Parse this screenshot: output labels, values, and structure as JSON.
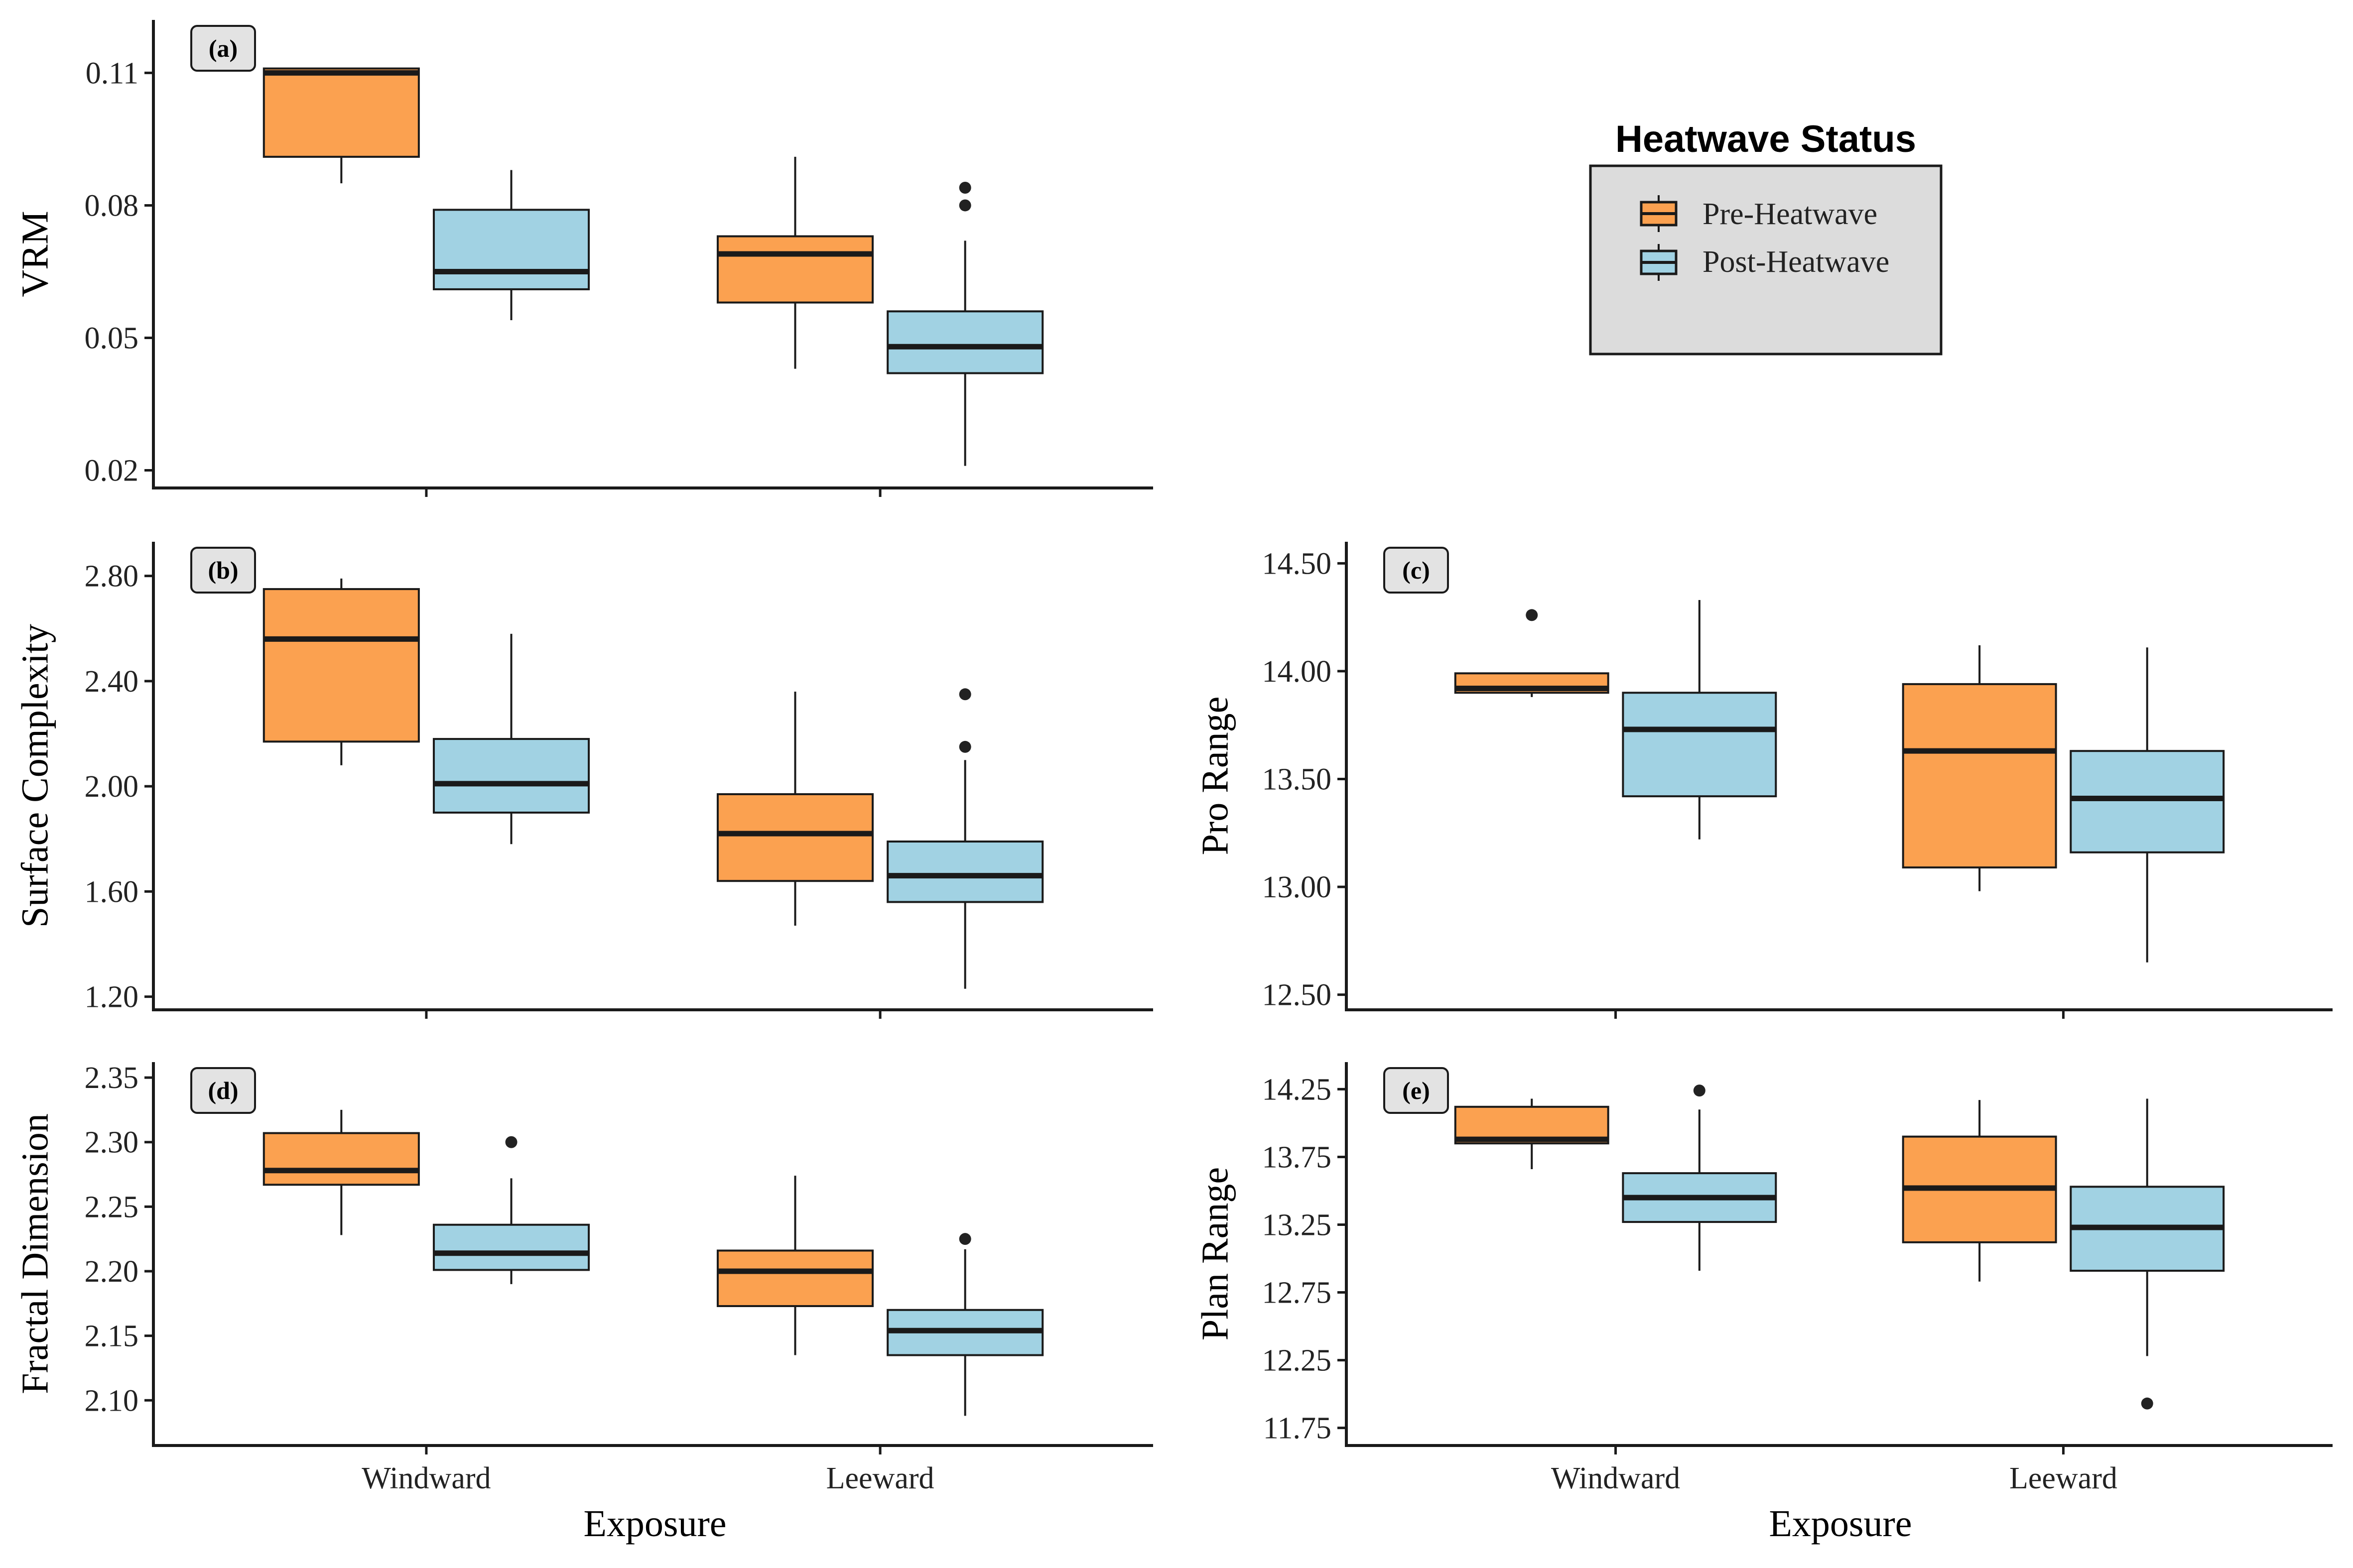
{
  "legend": {
    "title": "Heatwave Status",
    "items": [
      {
        "label": "Pre-Heatwave",
        "color": "#FBA150"
      },
      {
        "label": "Post-Heatwave",
        "color": "#A1D2E3"
      }
    ]
  },
  "colors": {
    "pre": "#FBA150",
    "post": "#A1D2E3",
    "line": "#1a1a1a",
    "tag_bg": "#E3E3E3",
    "legend_bg": "#DCDCDC"
  },
  "x_title": "Exposure",
  "chart_data": [
    {
      "tag": "(a)",
      "type": "box",
      "ylabel": "VRM",
      "categories": [
        "Windward",
        "Leeward"
      ],
      "ylim": [
        0.016,
        0.122
      ],
      "yticks": [
        0.02,
        0.05,
        0.08,
        0.11
      ],
      "ytick_labels": [
        "0.02",
        "0.05",
        "0.08",
        "0.11"
      ],
      "show_xlabels": false,
      "series": [
        {
          "name": "Pre-Heatwave",
          "boxes": [
            {
              "category": "Windward",
              "min": 0.085,
              "q1": 0.091,
              "median": 0.11,
              "q3": 0.111,
              "max": 0.111,
              "outliers": []
            },
            {
              "category": "Leeward",
              "min": 0.043,
              "q1": 0.058,
              "median": 0.069,
              "q3": 0.073,
              "max": 0.091,
              "outliers": []
            }
          ]
        },
        {
          "name": "Post-Heatwave",
          "boxes": [
            {
              "category": "Windward",
              "min": 0.054,
              "q1": 0.061,
              "median": 0.065,
              "q3": 0.079,
              "max": 0.088,
              "outliers": []
            },
            {
              "category": "Leeward",
              "min": 0.021,
              "q1": 0.042,
              "median": 0.048,
              "q3": 0.056,
              "max": 0.072,
              "outliers": [
                0.08,
                0.084
              ]
            }
          ]
        }
      ]
    },
    {
      "tag": "(b)",
      "type": "box",
      "ylabel": "Surface Complexity",
      "categories": [
        "Windward",
        "Leeward"
      ],
      "ylim": [
        1.15,
        2.93
      ],
      "yticks": [
        1.2,
        1.6,
        2.0,
        2.4,
        2.8
      ],
      "ytick_labels": [
        "1.20",
        "1.60",
        "2.00",
        "2.40",
        "2.80"
      ],
      "show_xlabels": false,
      "series": [
        {
          "name": "Pre-Heatwave",
          "boxes": [
            {
              "category": "Windward",
              "min": 2.08,
              "q1": 2.17,
              "median": 2.56,
              "q3": 2.75,
              "max": 2.79,
              "outliers": []
            },
            {
              "category": "Leeward",
              "min": 1.47,
              "q1": 1.64,
              "median": 1.82,
              "q3": 1.97,
              "max": 2.36,
              "outliers": []
            }
          ]
        },
        {
          "name": "Post-Heatwave",
          "boxes": [
            {
              "category": "Windward",
              "min": 1.78,
              "q1": 1.9,
              "median": 2.01,
              "q3": 2.18,
              "max": 2.58,
              "outliers": []
            },
            {
              "category": "Leeward",
              "min": 1.23,
              "q1": 1.56,
              "median": 1.66,
              "q3": 1.79,
              "max": 2.1,
              "outliers": [
                2.15,
                2.35
              ]
            }
          ]
        }
      ]
    },
    {
      "tag": "(c)",
      "type": "box",
      "ylabel": "Pro Range",
      "categories": [
        "Windward",
        "Leeward"
      ],
      "ylim": [
        12.43,
        14.6
      ],
      "yticks": [
        12.5,
        13.0,
        13.5,
        14.0,
        14.5
      ],
      "ytick_labels": [
        "12.50",
        "13.00",
        "13.50",
        "14.00",
        "14.50"
      ],
      "show_xlabels": false,
      "series": [
        {
          "name": "Pre-Heatwave",
          "boxes": [
            {
              "category": "Windward",
              "min": 13.88,
              "q1": 13.9,
              "median": 13.92,
              "q3": 13.99,
              "max": 13.99,
              "outliers": [
                14.26
              ]
            },
            {
              "category": "Leeward",
              "min": 12.98,
              "q1": 13.09,
              "median": 13.63,
              "q3": 13.94,
              "max": 14.12,
              "outliers": []
            }
          ]
        },
        {
          "name": "Post-Heatwave",
          "boxes": [
            {
              "category": "Windward",
              "min": 13.22,
              "q1": 13.42,
              "median": 13.73,
              "q3": 13.9,
              "max": 14.33,
              "outliers": []
            },
            {
              "category": "Leeward",
              "min": 12.65,
              "q1": 13.16,
              "median": 13.41,
              "q3": 13.63,
              "max": 14.11,
              "outliers": []
            }
          ]
        }
      ]
    },
    {
      "tag": "(d)",
      "type": "box",
      "ylabel": "Fractal Dimension",
      "categories": [
        "Windward",
        "Leeward"
      ],
      "ylim": [
        2.065,
        2.362
      ],
      "yticks": [
        2.1,
        2.15,
        2.2,
        2.25,
        2.3,
        2.35
      ],
      "ytick_labels": [
        "2.10",
        "2.15",
        "2.20",
        "2.25",
        "2.30",
        "2.35"
      ],
      "show_xlabels": true,
      "series": [
        {
          "name": "Pre-Heatwave",
          "boxes": [
            {
              "category": "Windward",
              "min": 2.228,
              "q1": 2.267,
              "median": 2.278,
              "q3": 2.307,
              "max": 2.325,
              "outliers": []
            },
            {
              "category": "Leeward",
              "min": 2.135,
              "q1": 2.173,
              "median": 2.2,
              "q3": 2.216,
              "max": 2.274,
              "outliers": []
            }
          ]
        },
        {
          "name": "Post-Heatwave",
          "boxes": [
            {
              "category": "Windward",
              "min": 2.19,
              "q1": 2.201,
              "median": 2.214,
              "q3": 2.236,
              "max": 2.272,
              "outliers": [
                2.3
              ]
            },
            {
              "category": "Leeward",
              "min": 2.088,
              "q1": 2.135,
              "median": 2.154,
              "q3": 2.17,
              "max": 2.217,
              "outliers": [
                2.225
              ]
            }
          ]
        }
      ]
    },
    {
      "tag": "(e)",
      "type": "box",
      "ylabel": "Plan Range",
      "categories": [
        "Windward",
        "Leeward"
      ],
      "ylim": [
        11.62,
        14.45
      ],
      "yticks": [
        11.75,
        12.25,
        12.75,
        13.25,
        13.75,
        14.25
      ],
      "ytick_labels": [
        "11.75",
        "12.25",
        "12.75",
        "13.25",
        "13.75",
        "14.25"
      ],
      "show_xlabels": true,
      "series": [
        {
          "name": "Pre-Heatwave",
          "boxes": [
            {
              "category": "Windward",
              "min": 13.66,
              "q1": 13.85,
              "median": 13.88,
              "q3": 14.12,
              "max": 14.18,
              "outliers": []
            },
            {
              "category": "Leeward",
              "min": 12.83,
              "q1": 13.12,
              "median": 13.52,
              "q3": 13.9,
              "max": 14.17,
              "outliers": []
            }
          ]
        },
        {
          "name": "Post-Heatwave",
          "boxes": [
            {
              "category": "Windward",
              "min": 12.91,
              "q1": 13.27,
              "median": 13.45,
              "q3": 13.63,
              "max": 14.1,
              "outliers": [
                14.24
              ]
            },
            {
              "category": "Leeward",
              "min": 12.28,
              "q1": 12.91,
              "median": 13.23,
              "q3": 13.53,
              "max": 14.18,
              "outliers": [
                11.93
              ]
            }
          ]
        }
      ]
    }
  ]
}
